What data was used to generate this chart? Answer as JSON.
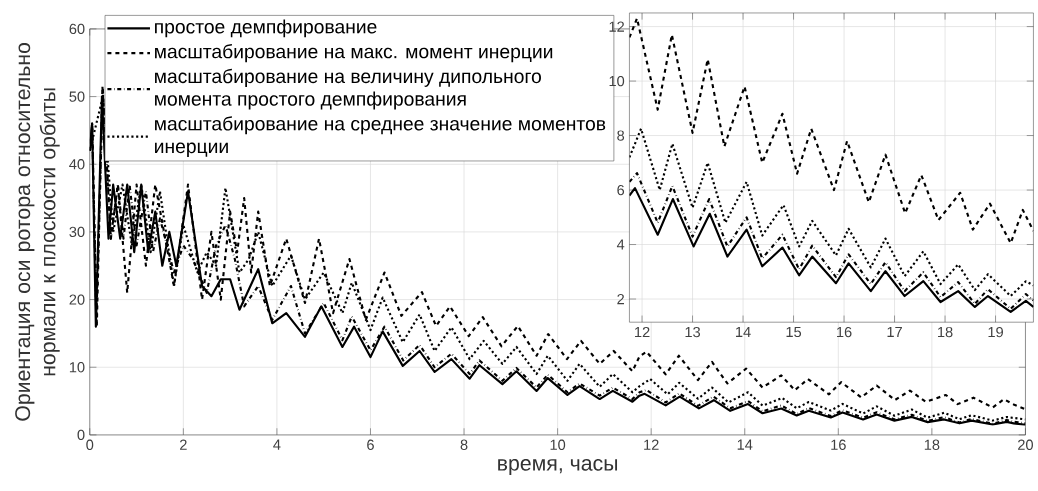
{
  "chart_data": [
    {
      "type": "line",
      "xlabel": "время, часы",
      "ylabel": "Ориентация оси ротора относительно нормали к плоскости орбиты",
      "xlim": [
        0,
        20
      ],
      "ylim": [
        0,
        60
      ],
      "xticks": [
        0,
        2,
        4,
        6,
        8,
        10,
        12,
        14,
        16,
        18,
        20
      ],
      "yticks": [
        0,
        10,
        20,
        30,
        40,
        50,
        60
      ],
      "grid": true,
      "legend": "top left",
      "series": [
        {
          "name": "простое демпфирование",
          "color": "#000000",
          "line_style": "solid",
          "x": [
            0,
            0.05,
            0.13,
            0.26,
            0.4,
            0.5,
            0.65,
            0.8,
            0.95,
            1.1,
            1.25,
            1.4,
            1.55,
            1.7,
            1.85,
            2.1,
            2.4,
            2.6,
            2.8,
            3.0,
            3.2,
            3.6,
            3.9,
            4.2,
            4.6,
            4.95,
            5.4,
            5.65,
            6.0,
            6.26,
            6.69,
            7.05,
            7.37,
            7.73,
            8.12,
            8.33,
            8.82,
            9.12,
            9.55,
            9.79,
            10.21,
            10.47,
            10.9,
            11.18,
            11.6,
            11.75,
            11.86,
            12.31,
            12.61,
            13.02,
            13.34,
            13.69,
            14.07,
            14.38,
            14.78,
            15.11,
            15.37,
            15.84,
            16.09,
            16.53,
            16.82,
            17.2,
            17.57,
            17.91,
            18.26,
            18.59,
            18.85,
            19.3,
            19.6,
            19.75,
            20
          ],
          "values": [
            42,
            46,
            16,
            50,
            29,
            37,
            29,
            37,
            27,
            37,
            27,
            33,
            25,
            30,
            25,
            36,
            22,
            20.5,
            23,
            23,
            18.5,
            24.5,
            16.5,
            18,
            14.5,
            19,
            13,
            16,
            11.5,
            15.3,
            10.2,
            12.4,
            9.3,
            11.2,
            8.3,
            10.3,
            7.5,
            9.4,
            6.5,
            8.4,
            5.9,
            7.2,
            5.3,
            6.5,
            4.9,
            5.8,
            6.07,
            4.36,
            5.67,
            3.93,
            5.13,
            3.56,
            4.55,
            3.2,
            3.89,
            2.87,
            3.56,
            2.58,
            3.31,
            2.29,
            3.02,
            2.11,
            2.66,
            1.89,
            2.29,
            1.71,
            2.11,
            1.53,
            1.93,
            1.71,
            1.5
          ]
        },
        {
          "name": "масштабирование на макс. момент инерции",
          "color": "#000000",
          "line_style": "dashed",
          "x": [
            0,
            0.05,
            0.15,
            0.27,
            0.45,
            0.6,
            0.8,
            1.0,
            1.2,
            1.4,
            1.8,
            2.1,
            2.4,
            2.6,
            2.8,
            3.0,
            3.15,
            3.3,
            3.45,
            3.6,
            3.85,
            4.2,
            4.6,
            4.9,
            5.2,
            5.55,
            5.9,
            6.3,
            6.66,
            7.1,
            7.4,
            7.7,
            8.1,
            8.4,
            8.8,
            9.15,
            9.55,
            9.8,
            10.2,
            10.5,
            10.9,
            11.2,
            11.6,
            11.75,
            11.9,
            12.31,
            12.59,
            13.0,
            13.3,
            13.63,
            14.03,
            14.38,
            14.78,
            15.07,
            15.35,
            15.8,
            16.06,
            16.49,
            16.82,
            17.21,
            17.53,
            17.87,
            18.3,
            18.55,
            18.89,
            19.3,
            19.54,
            19.75,
            20
          ],
          "values": [
            42,
            46,
            16,
            51.5,
            29,
            37,
            21,
            37,
            25,
            37,
            22,
            37,
            20,
            30,
            20,
            33,
            27,
            35,
            24,
            33,
            22,
            29,
            19.5,
            29,
            18,
            26,
            17,
            24,
            17.6,
            21.1,
            16.1,
            19.0,
            14.6,
            17.4,
            13.1,
            16.1,
            11.7,
            14.9,
            11.2,
            13.9,
            10.5,
            12.4,
            9.4,
            11.6,
            12.3,
            8.95,
            11.7,
            8.1,
            10.8,
            7.6,
            9.8,
            7.0,
            8.8,
            6.6,
            8.25,
            6.0,
            7.8,
            5.55,
            7.3,
            5.15,
            6.55,
            4.9,
            5.9,
            4.55,
            5.5,
            4.05,
            5.27,
            4.5,
            3.8
          ]
        },
        {
          "name": "масштабирование на величину дипольного момента простого демпфирования",
          "color": "#000000",
          "line_style": "dashdot",
          "x": [
            0,
            0.05,
            0.14,
            0.28,
            0.45,
            0.6,
            0.72,
            0.85,
            1.0,
            1.2,
            1.35,
            1.5,
            1.8,
            2.0,
            2.2,
            2.5,
            2.7,
            2.9,
            3.1,
            3.3,
            3.6,
            3.9,
            4.3,
            4.6,
            5.0,
            5.4,
            5.6,
            6.0,
            6.3,
            6.7,
            7.05,
            7.37,
            7.73,
            8.12,
            8.33,
            8.82,
            9.12,
            9.55,
            9.79,
            10.21,
            10.47,
            10.9,
            11.18,
            11.6,
            11.75,
            11.9,
            12.31,
            12.6,
            13.0,
            13.33,
            13.69,
            14.07,
            14.38,
            14.78,
            15.11,
            15.37,
            15.84,
            16.09,
            16.53,
            16.82,
            17.2,
            17.57,
            17.91,
            18.26,
            18.59,
            18.85,
            19.3,
            19.6,
            19.75,
            20
          ],
          "values": [
            42,
            46,
            17,
            51,
            29,
            37,
            29,
            37,
            28,
            36,
            27,
            32,
            24,
            28,
            26,
            21,
            28,
            31,
            26,
            19,
            22,
            17,
            22,
            15,
            19.5,
            14,
            17.5,
            12.5,
            16,
            11,
            13.3,
            10,
            12,
            9,
            11,
            8,
            9.9,
            7,
            8.9,
            6.3,
            7.6,
            5.8,
            7.0,
            5.3,
            6.3,
            6.62,
            4.8,
            6.15,
            4.29,
            5.67,
            3.93,
            5.0,
            3.49,
            4.36,
            3.09,
            3.96,
            2.8,
            3.64,
            2.55,
            3.35,
            2.29,
            2.98,
            2.07,
            2.62,
            1.82,
            2.36,
            1.64,
            2.18,
            1.95,
            1.7
          ]
        },
        {
          "name": "масштабирование на среднее значение моментов инерции",
          "color": "#000000",
          "line_style": "dotted",
          "x": [
            0,
            0.28,
            0.5,
            0.7,
            0.9,
            1.1,
            1.3,
            1.5,
            1.8,
            2.0,
            2.3,
            2.5,
            2.7,
            2.9,
            3.2,
            3.4,
            3.6,
            3.9,
            4.3,
            4.6,
            5.0,
            5.4,
            5.6,
            6.0,
            6.26,
            6.69,
            7.05,
            7.37,
            7.73,
            8.12,
            8.42,
            8.82,
            9.12,
            9.55,
            9.79,
            10.21,
            10.47,
            10.9,
            11.18,
            11.6,
            11.75,
            11.98,
            12.35,
            12.6,
            13.0,
            13.3,
            13.65,
            14.07,
            14.38,
            14.8,
            15.11,
            15.37,
            15.84,
            16.09,
            16.53,
            16.82,
            17.2,
            17.57,
            17.91,
            18.26,
            18.59,
            18.85,
            19.3,
            19.6,
            19.75,
            20
          ],
          "values": [
            42,
            50,
            30,
            37,
            28,
            37,
            27,
            36,
            22,
            31,
            24,
            27,
            25,
            36.5,
            24,
            26,
            30,
            22,
            26.5,
            20,
            24,
            18,
            22.5,
            15.5,
            20.3,
            13.7,
            17.8,
            12.4,
            15.9,
            11.2,
            13.9,
            10.5,
            13.0,
            9.0,
            11.7,
            8.0,
            10.5,
            7.1,
            9.0,
            6.3,
            7.2,
            8.25,
            6.0,
            7.7,
            5.35,
            7.0,
            4.8,
            6.3,
            4.33,
            5.45,
            3.93,
            4.87,
            3.6,
            4.58,
            3.16,
            4.22,
            2.84,
            3.75,
            2.55,
            3.27,
            2.33,
            2.91,
            2.11,
            2.65,
            2.5,
            2.3
          ]
        }
      ]
    },
    {
      "type": "line",
      "xlim": [
        11.75,
        19.75
      ],
      "ylim": [
        1.15,
        12.5
      ],
      "xticks": [
        12,
        13,
        14,
        15,
        16,
        17,
        18,
        19
      ],
      "yticks": [
        2,
        4,
        6,
        8,
        10,
        12
      ],
      "grid": true,
      "series": [
        {
          "color": "#000000",
          "line_style": "solid",
          "x": [
            11.75,
            11.86,
            12.31,
            12.61,
            13.02,
            13.34,
            13.69,
            14.07,
            14.38,
            14.78,
            15.11,
            15.37,
            15.84,
            16.09,
            16.53,
            16.82,
            17.2,
            17.57,
            17.91,
            18.26,
            18.59,
            18.85,
            19.3,
            19.6,
            19.75
          ],
          "values": [
            5.8,
            6.07,
            4.36,
            5.67,
            3.93,
            5.13,
            3.56,
            4.55,
            3.2,
            3.89,
            2.87,
            3.56,
            2.58,
            3.31,
            2.29,
            3.02,
            2.11,
            2.66,
            1.89,
            2.29,
            1.71,
            2.11,
            1.53,
            1.93,
            1.71
          ]
        },
        {
          "color": "#000000",
          "line_style": "dashed",
          "x": [
            11.75,
            11.9,
            12.31,
            12.59,
            13.0,
            13.3,
            13.63,
            14.03,
            14.38,
            14.78,
            15.07,
            15.35,
            15.8,
            16.06,
            16.49,
            16.82,
            17.21,
            17.53,
            17.87,
            18.3,
            18.55,
            18.89,
            19.3,
            19.54,
            19.75
          ],
          "values": [
            11.6,
            12.3,
            8.95,
            11.7,
            8.1,
            10.8,
            7.6,
            9.8,
            7.0,
            8.8,
            6.6,
            8.25,
            6.0,
            7.8,
            5.55,
            7.3,
            5.15,
            6.55,
            4.9,
            5.9,
            4.55,
            5.5,
            4.05,
            5.27,
            4.5
          ]
        },
        {
          "color": "#000000",
          "line_style": "dashdot",
          "x": [
            11.75,
            11.9,
            12.31,
            12.6,
            13.0,
            13.33,
            13.69,
            14.07,
            14.38,
            14.78,
            15.11,
            15.37,
            15.84,
            16.09,
            16.53,
            16.82,
            17.2,
            17.57,
            17.91,
            18.26,
            18.59,
            18.85,
            19.3,
            19.6,
            19.75
          ],
          "values": [
            6.3,
            6.62,
            4.8,
            6.15,
            4.29,
            5.67,
            3.93,
            5.0,
            3.49,
            4.36,
            3.09,
            3.96,
            2.8,
            3.64,
            2.55,
            3.35,
            2.29,
            2.98,
            2.07,
            2.62,
            1.82,
            2.36,
            1.64,
            2.18,
            1.95
          ]
        },
        {
          "color": "#000000",
          "line_style": "dotted",
          "x": [
            11.75,
            11.98,
            12.35,
            12.6,
            13.0,
            13.3,
            13.65,
            14.07,
            14.38,
            14.8,
            15.11,
            15.37,
            15.84,
            16.09,
            16.53,
            16.82,
            17.2,
            17.57,
            17.91,
            18.26,
            18.59,
            18.85,
            19.3,
            19.6,
            19.75
          ],
          "values": [
            7.2,
            8.25,
            6.0,
            7.7,
            5.35,
            7.0,
            4.8,
            6.3,
            4.33,
            5.45,
            3.93,
            4.87,
            3.6,
            4.58,
            3.16,
            4.22,
            2.84,
            3.75,
            2.55,
            3.27,
            2.33,
            2.91,
            2.11,
            2.65,
            2.5
          ]
        }
      ]
    }
  ]
}
